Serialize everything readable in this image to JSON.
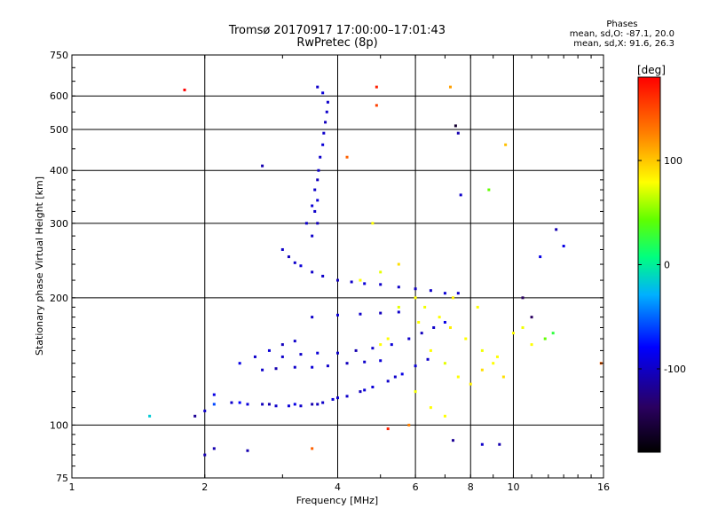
{
  "header": {
    "title": "Tromsø 20170917 17:00:00–17:01:43",
    "subtitle": "RwPretec (8p)"
  },
  "phase_info": {
    "heading": "Phases",
    "line_o": "mean, sd,O: -87.1, 20.0",
    "line_x": "mean, sd,X: 91.6, 26.3"
  },
  "colorbar": {
    "unit": "[deg]",
    "ticks": [
      "100",
      "0",
      "-100"
    ],
    "tick_values": [
      100,
      0,
      -100
    ]
  },
  "chart_data": {
    "type": "scatter",
    "title": "Tromsø 20170917 17:00:00–17:01:43",
    "subtitle": "RwPretec (8p)",
    "xlabel": "Frequency [MHz]",
    "ylabel": "Stationary phase Virtual Height [km]",
    "xscale": "log",
    "yscale": "log",
    "xlim": [
      1,
      16
    ],
    "ylim": [
      75,
      750
    ],
    "xticks": [
      1,
      2,
      4,
      6,
      8,
      10,
      16
    ],
    "xtick_labels": [
      "1",
      "2",
      "4",
      "6",
      "8",
      "10",
      "16"
    ],
    "yticks": [
      75,
      100,
      200,
      300,
      400,
      500,
      600,
      750
    ],
    "ytick_labels": [
      "75",
      "100",
      "200",
      "300",
      "400",
      "500",
      "600",
      "750"
    ],
    "grid": true,
    "color_scale": "phase [deg], black at -180 through blue, cyan, green, yellow to red at +180",
    "series": [
      {
        "description": "E-layer trace",
        "points": [
          [
            2.1,
            118,
            -90
          ],
          [
            2.3,
            113,
            -100
          ],
          [
            2.5,
            112,
            -95
          ],
          [
            2.7,
            112,
            -105
          ],
          [
            2.9,
            111,
            -100
          ],
          [
            3.1,
            111,
            -95
          ],
          [
            3.3,
            111,
            -100
          ],
          [
            3.5,
            112,
            -110
          ],
          [
            3.7,
            113,
            -100
          ],
          [
            3.9,
            115,
            -95
          ],
          [
            4.2,
            117,
            -100
          ],
          [
            4.5,
            120,
            -105
          ],
          [
            4.8,
            123,
            -95
          ],
          [
            5.2,
            127,
            -100
          ],
          [
            5.6,
            132,
            -90
          ],
          [
            6.0,
            138,
            -95
          ],
          [
            6.4,
            143,
            -100
          ],
          [
            2.4,
            113,
            -80
          ],
          [
            2.8,
            112,
            -110
          ],
          [
            3.2,
            112,
            -90
          ],
          [
            3.6,
            112,
            -105
          ],
          [
            4.0,
            116,
            -100
          ],
          [
            4.6,
            121,
            -95
          ],
          [
            5.4,
            130,
            -100
          ]
        ]
      },
      {
        "description": "Es / low layer traces",
        "points": [
          [
            2.4,
            140,
            -90
          ],
          [
            2.6,
            145,
            -100
          ],
          [
            2.8,
            150,
            -95
          ],
          [
            3.0,
            155,
            -105
          ],
          [
            3.2,
            158,
            -100
          ],
          [
            2.7,
            135,
            -100
          ],
          [
            2.9,
            136,
            -110
          ],
          [
            3.2,
            137,
            -100
          ],
          [
            3.5,
            137,
            -95
          ],
          [
            3.8,
            138,
            -100
          ],
          [
            4.2,
            140,
            -105
          ],
          [
            4.6,
            141,
            -100
          ],
          [
            5.0,
            142,
            -95
          ],
          [
            3.0,
            145,
            -100
          ],
          [
            3.3,
            147,
            -100
          ],
          [
            3.6,
            148,
            -95
          ],
          [
            4.0,
            148,
            -100
          ],
          [
            4.4,
            150,
            -110
          ],
          [
            4.8,
            152,
            -100
          ],
          [
            5.3,
            155,
            -95
          ],
          [
            5.8,
            160,
            -100
          ],
          [
            6.2,
            165,
            -105
          ],
          [
            6.6,
            170,
            -100
          ],
          [
            7.0,
            175,
            -90
          ],
          [
            3.5,
            180,
            -100
          ],
          [
            4.0,
            182,
            -95
          ],
          [
            4.5,
            183,
            -100
          ],
          [
            5.0,
            184,
            -105
          ],
          [
            5.5,
            185,
            -100
          ]
        ]
      },
      {
        "description": "F-layer trace",
        "points": [
          [
            3.0,
            260,
            -100
          ],
          [
            3.1,
            250,
            -105
          ],
          [
            3.2,
            242,
            -100
          ],
          [
            3.3,
            238,
            -95
          ],
          [
            3.5,
            230,
            -100
          ],
          [
            3.7,
            225,
            -100
          ],
          [
            4.0,
            220,
            -105
          ],
          [
            4.3,
            218,
            -100
          ],
          [
            4.6,
            216,
            -95
          ],
          [
            5.0,
            215,
            -100
          ],
          [
            5.5,
            212,
            -100
          ],
          [
            6.0,
            210,
            -105
          ],
          [
            6.5,
            208,
            -100
          ],
          [
            7.0,
            205,
            -95
          ],
          [
            7.5,
            205,
            -100
          ],
          [
            3.5,
            280,
            -100
          ],
          [
            3.6,
            300,
            -105
          ],
          [
            3.55,
            320,
            -100
          ],
          [
            3.6,
            340,
            -95
          ],
          [
            3.55,
            360,
            -100
          ],
          [
            3.6,
            380,
            -105
          ],
          [
            3.62,
            400,
            -100
          ],
          [
            3.65,
            430,
            -100
          ],
          [
            3.7,
            460,
            -95
          ],
          [
            3.72,
            490,
            -100
          ],
          [
            3.75,
            520,
            -105
          ],
          [
            3.78,
            550,
            -100
          ],
          [
            3.8,
            580,
            -100
          ],
          [
            3.7,
            610,
            -95
          ],
          [
            3.6,
            630,
            -100
          ],
          [
            3.4,
            300,
            -100
          ],
          [
            3.5,
            330,
            -95
          ]
        ]
      },
      {
        "description": "scattered echoes (X mode)",
        "points": [
          [
            4.5,
            220,
            100
          ],
          [
            5.0,
            230,
            90
          ],
          [
            5.5,
            240,
            110
          ],
          [
            6.0,
            200,
            100
          ],
          [
            6.3,
            190,
            95
          ],
          [
            6.8,
            180,
            100
          ],
          [
            7.2,
            170,
            105
          ],
          [
            7.8,
            160,
            100
          ],
          [
            8.5,
            150,
            95
          ],
          [
            9.0,
            140,
            100
          ],
          [
            9.5,
            130,
            110
          ],
          [
            6.5,
            150,
            100
          ],
          [
            7.0,
            140,
            90
          ],
          [
            7.5,
            130,
            100
          ],
          [
            8.0,
            125,
            105
          ],
          [
            5.0,
            155,
            100
          ],
          [
            5.2,
            160,
            100
          ],
          [
            6.0,
            120,
            95
          ],
          [
            6.5,
            110,
            100
          ],
          [
            7.0,
            105,
            100
          ],
          [
            8.5,
            135,
            110
          ],
          [
            9.2,
            145,
            100
          ],
          [
            10.0,
            165,
            100
          ],
          [
            10.5,
            170,
            95
          ],
          [
            11.0,
            155,
            100
          ],
          [
            4.8,
            300,
            100
          ],
          [
            5.5,
            190,
            90
          ],
          [
            6.1,
            175,
            100
          ],
          [
            7.3,
            200,
            105
          ],
          [
            8.3,
            190,
            100
          ]
        ]
      },
      {
        "description": "scattered echoes (misc)",
        "points": [
          [
            1.8,
            620,
            180
          ],
          [
            4.2,
            430,
            150
          ],
          [
            4.9,
            630,
            170
          ],
          [
            4.9,
            570,
            160
          ],
          [
            7.2,
            630,
            130
          ],
          [
            7.4,
            510,
            -160
          ],
          [
            7.5,
            490,
            -110
          ],
          [
            8.8,
            360,
            40
          ],
          [
            7.6,
            350,
            -100
          ],
          [
            9.6,
            460,
            120
          ],
          [
            12.5,
            290,
            -110
          ],
          [
            13.0,
            265,
            -90
          ],
          [
            11.5,
            250,
            -90
          ],
          [
            10.5,
            200,
            -140
          ],
          [
            11.0,
            180,
            -140
          ],
          [
            11.8,
            160,
            40
          ],
          [
            12.3,
            165,
            20
          ],
          [
            15.8,
            140,
            150
          ],
          [
            2.0,
            85,
            -110
          ],
          [
            2.1,
            88,
            -110
          ],
          [
            2.5,
            87,
            -110
          ],
          [
            3.5,
            88,
            150
          ],
          [
            5.2,
            98,
            170
          ],
          [
            7.3,
            92,
            -120
          ],
          [
            8.5,
            90,
            -100
          ],
          [
            9.3,
            90,
            -110
          ],
          [
            1.5,
            105,
            -20
          ],
          [
            1.9,
            105,
            -120
          ],
          [
            2.0,
            108,
            -100
          ],
          [
            2.1,
            112,
            -60
          ],
          [
            5.8,
            100,
            140
          ],
          [
            2.7,
            410,
            -110
          ]
        ]
      }
    ]
  }
}
